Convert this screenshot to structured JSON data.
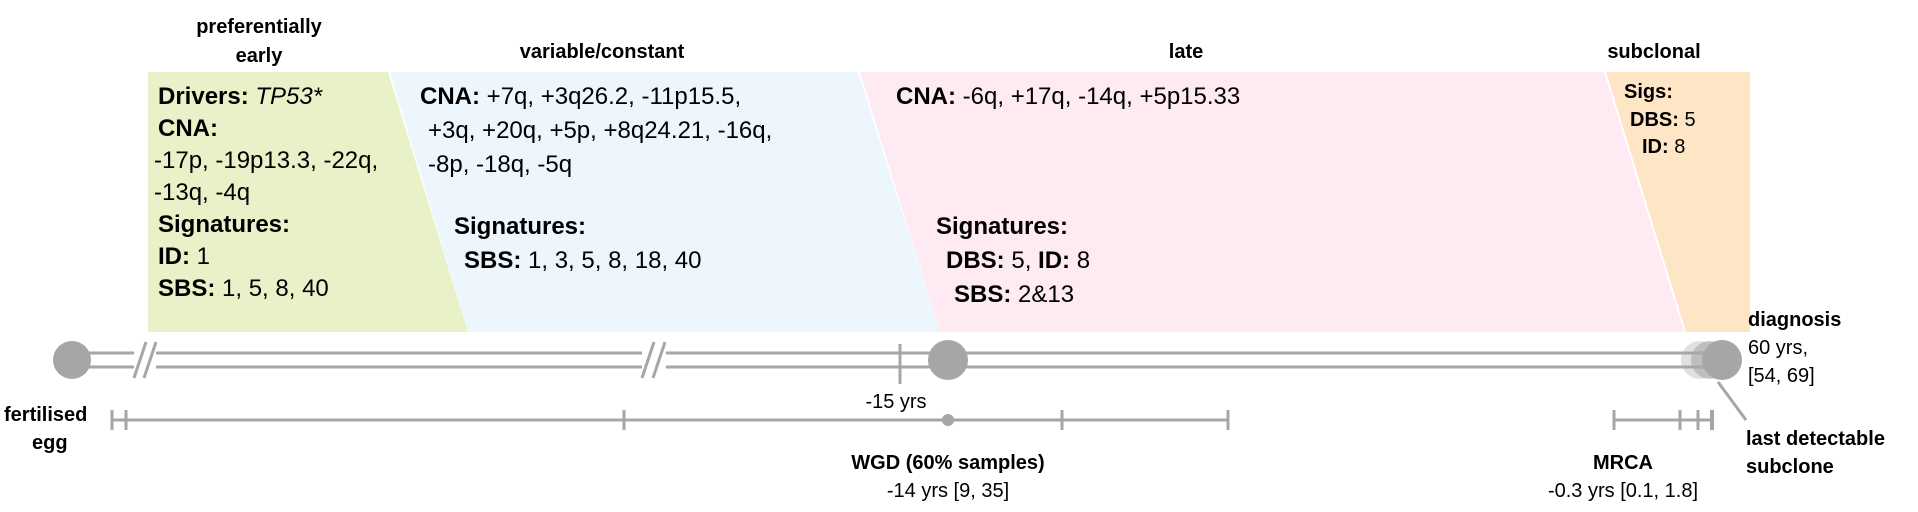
{
  "phases": {
    "early": {
      "title_line1": "preferentially",
      "title_line2": "early",
      "drivers_label": "Drivers:",
      "drivers_value": "TP53*",
      "cna_label": "CNA:",
      "cna_line1": "-17p, -19p13.3, -22q,",
      "cna_line2": "-13q, -4q",
      "sig_label": "Signatures:",
      "id_label": "ID:",
      "id_value": "1",
      "sbs_label": "SBS:",
      "sbs_value": "1, 5, 8, 40",
      "color": "#e8f1c8"
    },
    "variable": {
      "title": "variable/constant",
      "cna_label": "CNA:",
      "cna_line1": "+7q, +3q26.2, -11p15.5,",
      "cna_line2": "+3q, +20q, +5p, +8q24.21, -16q,",
      "cna_line3": "-8p, -18q, -5q",
      "sig_label": "Signatures:",
      "sbs_label": "SBS:",
      "sbs_value": "1, 3, 5, 8, 18, 40",
      "color": "#eef6fd"
    },
    "late": {
      "title": "late",
      "cna_label": "CNA:",
      "cna_value": "-6q, +17q, -14q, +5p15.33",
      "sig_label": "Signatures:",
      "dbs_label": "DBS:",
      "dbs_value": "5,",
      "id_label": "ID:",
      "id_value": "8",
      "sbs_label": "SBS:",
      "sbs_value": "2&13",
      "color": "#fdeaf3"
    },
    "subclonal": {
      "title": "subclonal",
      "sigs_label": "Sigs:",
      "dbs_label": "DBS:",
      "dbs_value": "5",
      "id_label": "ID:",
      "id_value": "8",
      "color": "#fde5c6"
    }
  },
  "timeline": {
    "start_line1": "fertilised",
    "start_line2": "egg",
    "end_label": "diagnosis",
    "end_age": "60 yrs,",
    "end_ci": "[54, 69]",
    "tick_label": "-15 yrs",
    "wgd_title": "WGD (60% samples)",
    "wgd_value": "-14 yrs [9, 35]",
    "mrca_title": "MRCA",
    "mrca_value": "-0.3 yrs [0.1, 1.8]",
    "subclone_line1": "last detectable",
    "subclone_line2": "subclone",
    "line_color": "#a6a6a6"
  }
}
